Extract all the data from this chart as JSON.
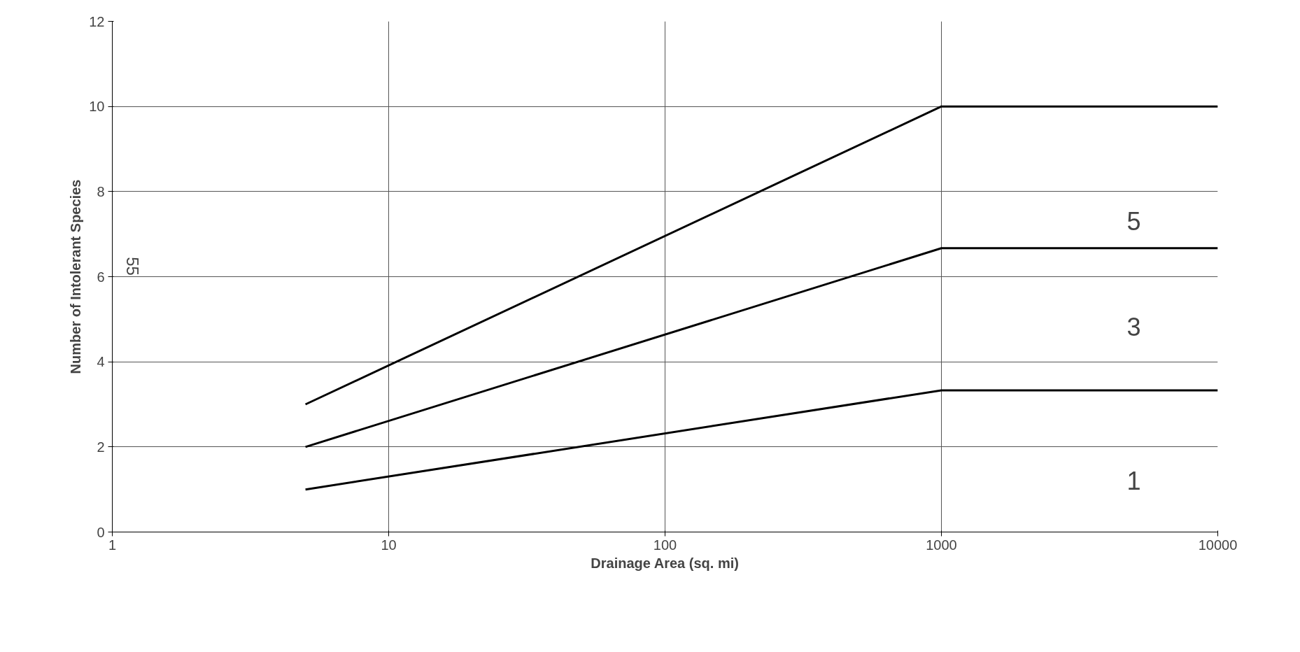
{
  "chart_data": {
    "type": "line",
    "xlabel": "Drainage Area (sq. mi)",
    "ylabel": "Number of Intolerant Species",
    "x": [
      5,
      1000,
      10000
    ],
    "series": [
      {
        "color": "#000000",
        "values": [
          3,
          10,
          10
        ]
      },
      {
        "color": "#000000",
        "values": [
          2,
          6.67,
          6.67
        ]
      },
      {
        "color": "#000000",
        "values": [
          1,
          3.33,
          3.33
        ]
      }
    ],
    "log": "x",
    "xlim": [
      1,
      10000
    ],
    "xticks": [
      1,
      10,
      100,
      1000,
      10000
    ],
    "ylim": [
      0,
      12
    ],
    "yticks": [
      0,
      2,
      4,
      6,
      8,
      10,
      12
    ],
    "grid": true,
    "marker": "none",
    "line_style": "solid",
    "annotations": [
      "5",
      "3",
      "1",
      "55"
    ]
  }
}
